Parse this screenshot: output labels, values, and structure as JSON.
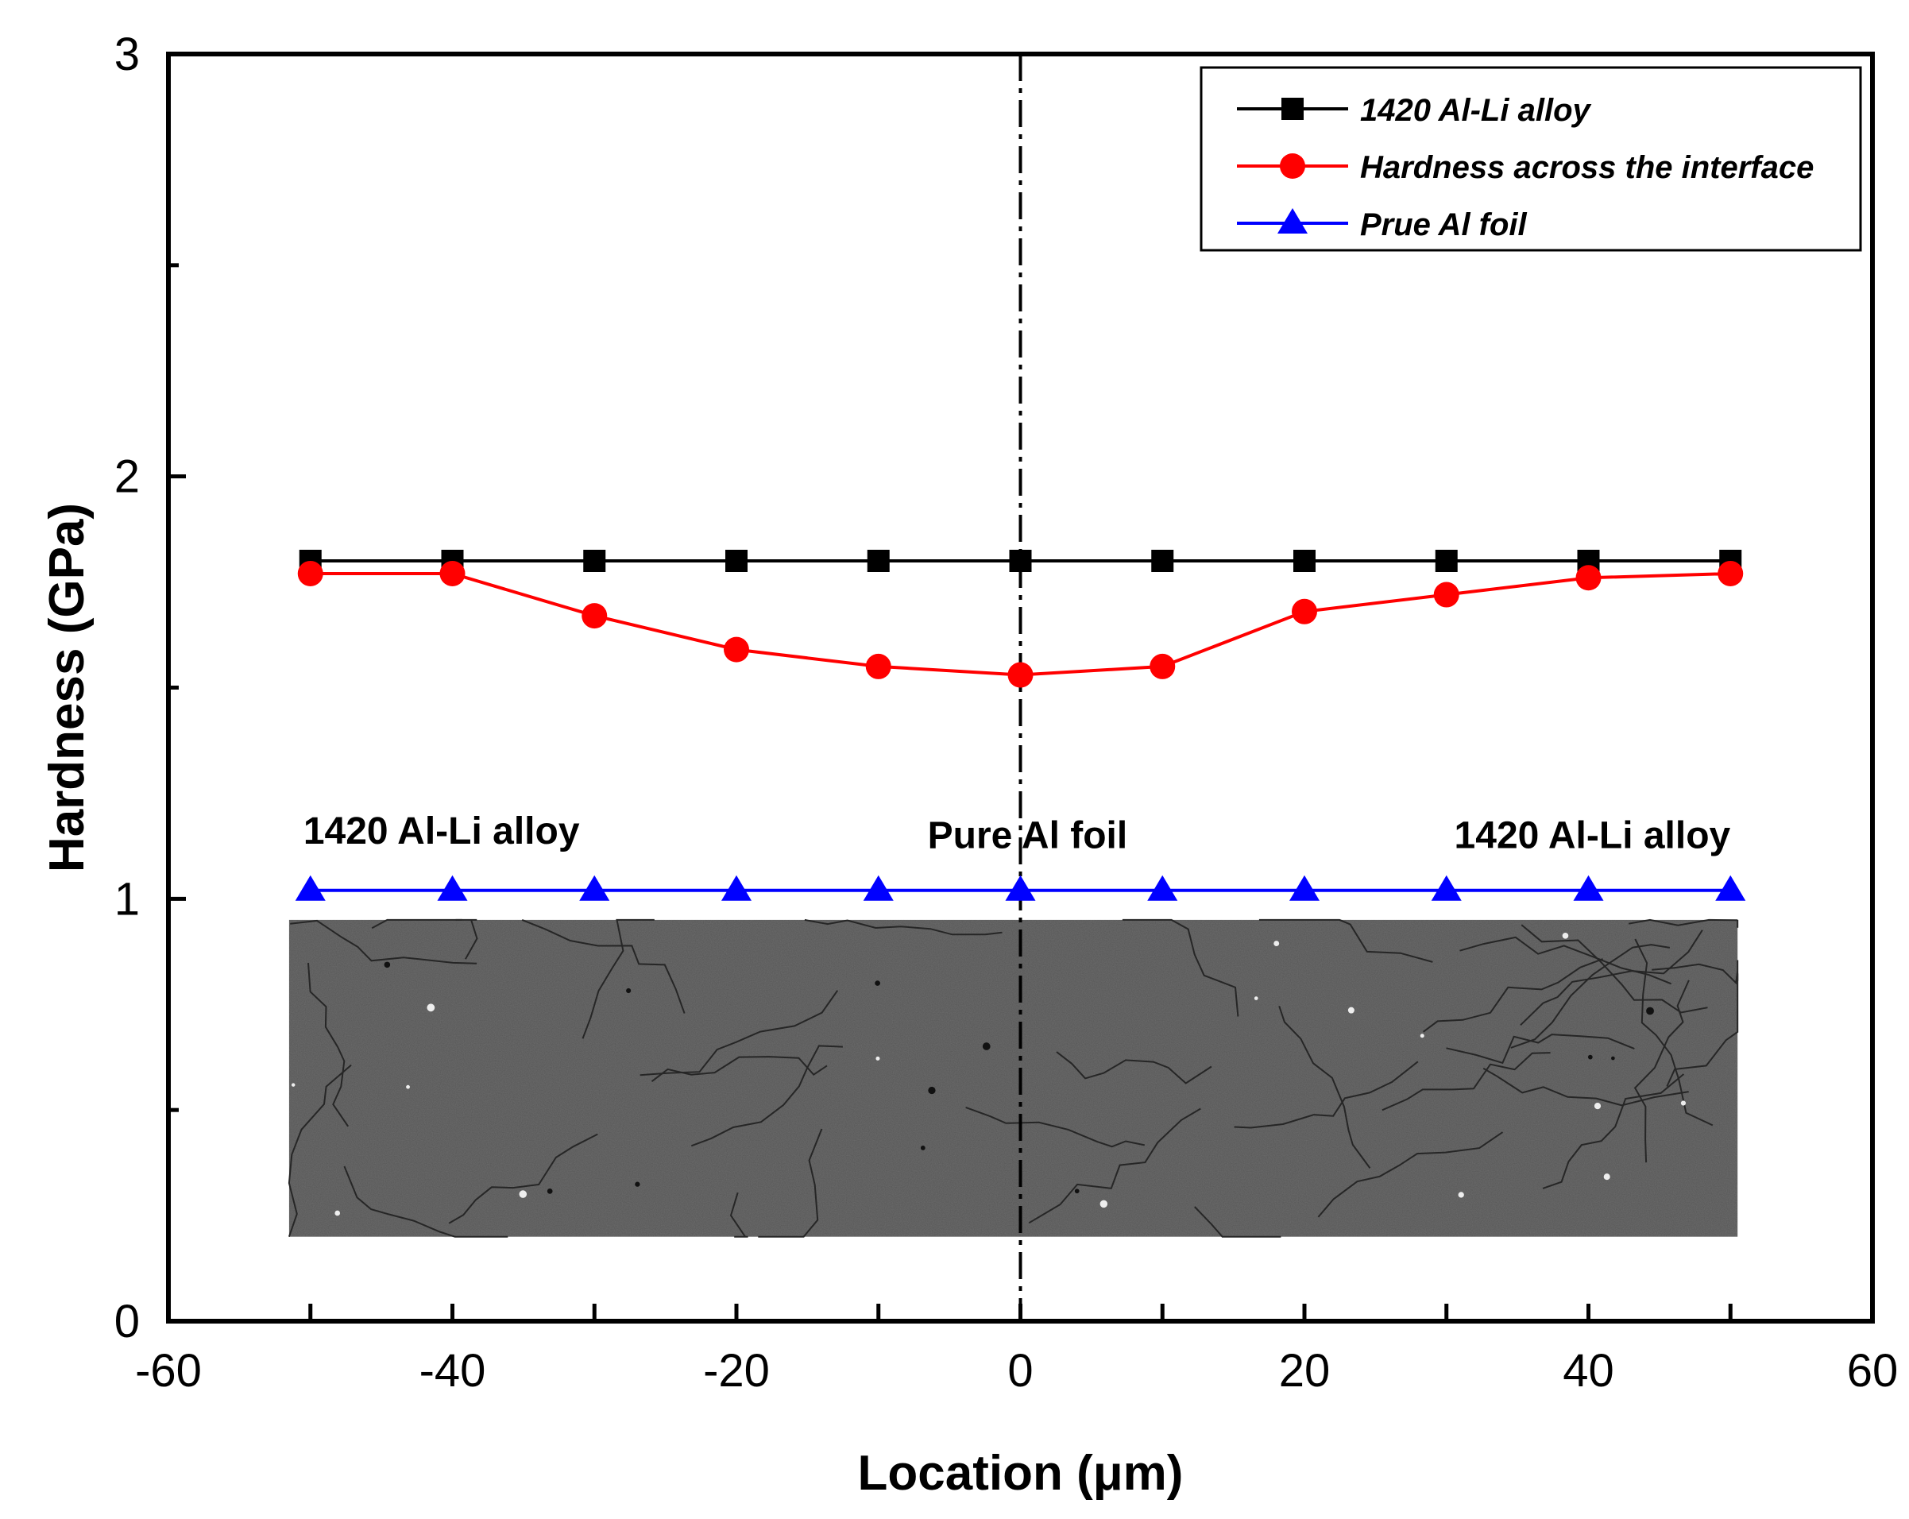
{
  "chart_data": {
    "type": "line",
    "xlabel": "Location (μm)",
    "ylabel": "Hardness (GPa)",
    "xlim": [
      -60,
      60
    ],
    "ylim": [
      0,
      3
    ],
    "x_ticks": [
      -60,
      -40,
      -20,
      0,
      20,
      40,
      60
    ],
    "x_minor_ticks": [
      -50,
      -40,
      -30,
      -20,
      -10,
      0,
      10,
      20,
      30,
      40,
      50
    ],
    "y_ticks": [
      0,
      1,
      2,
      3
    ],
    "y_minor_ticks": [
      0.5,
      1.5,
      2.5
    ],
    "grid": false,
    "legend_position": "top-right",
    "x": [
      -50,
      -40,
      -30,
      -20,
      -10,
      0,
      10,
      20,
      30,
      40,
      50
    ],
    "series": [
      {
        "name": "1420 Al-Li alloy",
        "color": "#000000",
        "marker": "square",
        "values": [
          1.8,
          1.8,
          1.8,
          1.8,
          1.8,
          1.8,
          1.8,
          1.8,
          1.8,
          1.8,
          1.8
        ]
      },
      {
        "name": "Hardness across the interface",
        "color": "#ff0000",
        "marker": "circle",
        "values": [
          1.77,
          1.77,
          1.67,
          1.59,
          1.55,
          1.53,
          1.55,
          1.68,
          1.72,
          1.76,
          1.77
        ]
      },
      {
        "name": "Prue Al foil",
        "color": "#0000ff",
        "marker": "triangle",
        "values": [
          1.02,
          1.02,
          1.02,
          1.02,
          1.02,
          1.02,
          1.02,
          1.02,
          1.02,
          1.02,
          1.02
        ]
      }
    ],
    "reference_line": {
      "x": 0,
      "style": "dash-dot",
      "color": "#000000"
    },
    "annotations": [
      {
        "text": "1420 Al-Li alloy",
        "x": -50.5,
        "y": 1.13,
        "anchor": "start"
      },
      {
        "text": "Pure Al foil",
        "x": 0.5,
        "y": 1.12,
        "anchor": "middle"
      },
      {
        "text": "1420 Al-Li alloy",
        "x": 50,
        "y": 1.12,
        "anchor": "end"
      }
    ],
    "inset_image": {
      "description_color": "#555555",
      "x_range": [
        -51.5,
        50.5
      ],
      "y_range": [
        0.2,
        0.95
      ]
    }
  }
}
